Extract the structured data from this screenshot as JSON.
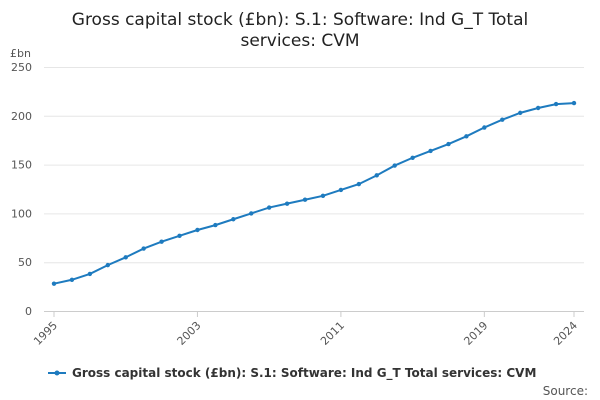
{
  "chart_data": {
    "type": "line",
    "title_lines": [
      "Gross capital stock (£bn): S.1: Software: Ind G_T Total",
      "services: CVM"
    ],
    "ylabel": "£bn",
    "xlabel": "",
    "xlim": [
      1995,
      2024
    ],
    "ylim": [
      0,
      250
    ],
    "yticks": [
      0,
      50,
      100,
      150,
      200,
      250
    ],
    "xticks": [
      1995,
      2003,
      2011,
      2019,
      2024
    ],
    "grid": true,
    "legend_position": "bottom",
    "series": [
      {
        "name": "Gross capital stock (£bn): S.1: Software: Ind G_T Total services: CVM",
        "color": "#1e7bbf",
        "x": [
          1995,
          1996,
          1997,
          1998,
          1999,
          2000,
          2001,
          2002,
          2003,
          2004,
          2005,
          2006,
          2007,
          2008,
          2009,
          2010,
          2011,
          2012,
          2013,
          2014,
          2015,
          2016,
          2017,
          2018,
          2019,
          2020,
          2021,
          2022,
          2023,
          2024
        ],
        "values": [
          28,
          32,
          38,
          47,
          55,
          64,
          71,
          77,
          83,
          88,
          94,
          100,
          106,
          110,
          114,
          118,
          124,
          130,
          139,
          149,
          157,
          164,
          171,
          179,
          188,
          196,
          203,
          208,
          212,
          213
        ]
      }
    ]
  },
  "source_label": "Source:"
}
